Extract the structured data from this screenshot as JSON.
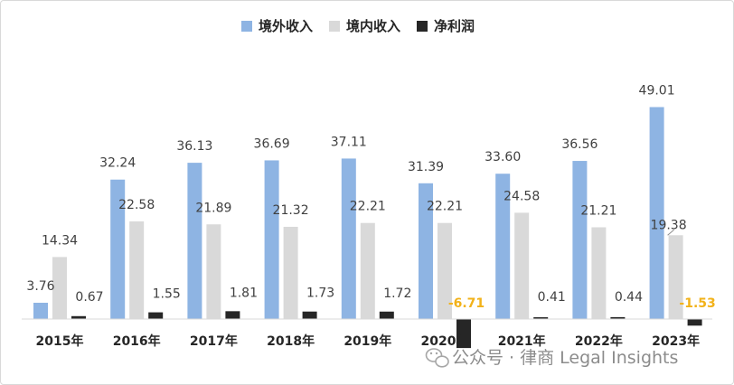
{
  "chart_data": {
    "type": "bar",
    "title": "",
    "xlabel": "",
    "ylabel": "",
    "categories": [
      "2015年",
      "2016年",
      "2017年",
      "2018年",
      "2019年",
      "2020年",
      "2021年",
      "2022年",
      "2023年"
    ],
    "series": [
      {
        "name": "境外收入",
        "color": "#8eb4e3",
        "values": [
          3.76,
          32.24,
          36.13,
          36.69,
          37.11,
          31.39,
          33.6,
          36.56,
          49.01
        ],
        "labels": [
          "3.76",
          "32.24",
          "36.13",
          "36.69",
          "37.11",
          "31.39",
          "33.60",
          "36.56",
          "49.01"
        ]
      },
      {
        "name": "境内收入",
        "color": "#d9d9d9",
        "values": [
          14.34,
          22.58,
          21.89,
          21.32,
          22.21,
          22.21,
          24.58,
          21.21,
          19.38
        ],
        "labels": [
          "14.34",
          "22.58",
          "21.89",
          "21.32",
          "22.21",
          "22.21",
          "24.58",
          "21.21",
          "19.38"
        ]
      },
      {
        "name": "净利润",
        "color": "#262626",
        "values": [
          0.67,
          1.55,
          1.81,
          1.73,
          1.72,
          -6.71,
          0.41,
          0.44,
          -1.53
        ],
        "labels": [
          "0.67",
          "1.55",
          "1.81",
          "1.73",
          "1.72",
          "-6.71",
          "0.41",
          "0.44",
          "-1.53"
        ]
      }
    ],
    "negative_label_color": "#f2b21a",
    "legend": "top-center",
    "grid": false,
    "ylim": [
      -7,
      52
    ]
  },
  "watermark": {
    "text": "公众号 · 律商 Legal Insights",
    "icon": "wechat-icon"
  }
}
